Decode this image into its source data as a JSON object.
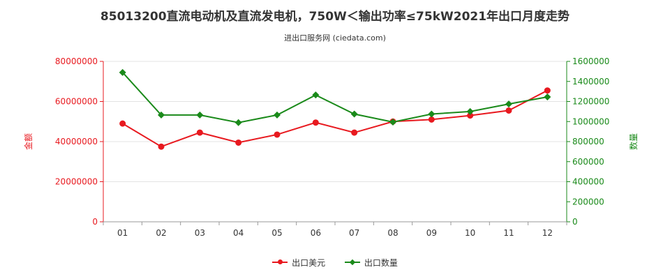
{
  "page": {
    "title": "85013200直流电动机及直流发电机，750W＜输出功率≤75kW2021年出口月度走势",
    "subtitle": "进出口服务网 (ciedata.com)"
  },
  "chart_data": {
    "type": "line",
    "categories": [
      "01",
      "02",
      "03",
      "04",
      "05",
      "06",
      "07",
      "08",
      "09",
      "10",
      "11",
      "12"
    ],
    "y_left": {
      "label": "金额",
      "ylim": [
        0,
        80000000
      ],
      "ticks": [
        0,
        20000000,
        40000000,
        60000000,
        80000000
      ],
      "tick_labels": [
        "0",
        "20000000",
        "40000000",
        "60000000",
        "80000000"
      ],
      "color": "#e8191f"
    },
    "y_right": {
      "label": "数量",
      "ylim": [
        0,
        1600000
      ],
      "ticks": [
        0,
        200000,
        400000,
        600000,
        800000,
        1000000,
        1200000,
        1400000,
        1600000
      ],
      "tick_labels": [
        "0",
        "200000",
        "400000",
        "600000",
        "800000",
        "1000000",
        "1200000",
        "1400000",
        "1600000"
      ],
      "color": "#1a8a1a"
    },
    "series": [
      {
        "name": "出口美元",
        "axis": "left",
        "color": "#e8191f",
        "marker": "circle",
        "values": [
          49000000,
          37500000,
          44500000,
          39500000,
          43500000,
          49500000,
          44500000,
          50000000,
          51000000,
          53000000,
          55500000,
          65500000
        ]
      },
      {
        "name": "出口数量",
        "axis": "right",
        "color": "#1a8a1a",
        "marker": "diamond",
        "values": [
          1490000,
          1065000,
          1065000,
          990000,
          1065000,
          1265000,
          1075000,
          995000,
          1075000,
          1100000,
          1175000,
          1245000
        ]
      }
    ],
    "grid": "horizontal"
  }
}
